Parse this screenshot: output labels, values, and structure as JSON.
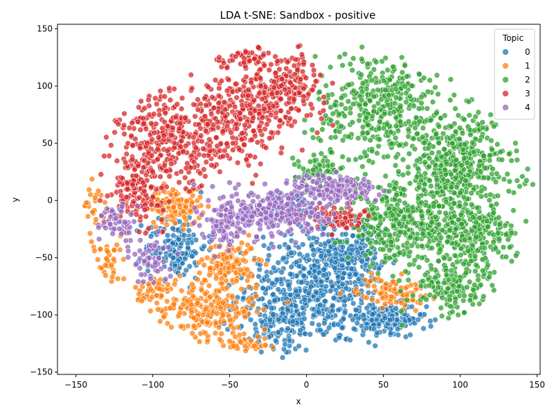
{
  "chart_data": {
    "type": "scatter",
    "title": "LDA t-SNE: Sandbox - positive",
    "xlabel": "x",
    "ylabel": "y",
    "xlim": [
      -162,
      152
    ],
    "ylim": [
      -152,
      154
    ],
    "xticks": [
      -150,
      -100,
      -50,
      0,
      50,
      100,
      150
    ],
    "yticks": [
      -150,
      -100,
      -50,
      0,
      50,
      100,
      150
    ],
    "grid": false,
    "legend": {
      "title": "Topic",
      "placement": "top-right",
      "entries": [
        "0",
        "1",
        "2",
        "3",
        "4"
      ]
    },
    "series": [
      {
        "name": "0",
        "color": "#1f77b4",
        "regions": [
          {
            "cx": 5,
            "cy": -75,
            "rx": 40,
            "ry": 45,
            "n": 520
          },
          {
            "cx": 30,
            "cy": -45,
            "rx": 18,
            "ry": 25,
            "n": 140
          },
          {
            "cx": 50,
            "cy": -105,
            "rx": 25,
            "ry": 14,
            "n": 160
          },
          {
            "cx": -85,
            "cy": -40,
            "rx": 18,
            "ry": 25,
            "n": 140
          },
          {
            "cx": -20,
            "cy": -105,
            "rx": 25,
            "ry": 25,
            "n": 120
          },
          {
            "cx": -10,
            "cy": -5,
            "rx": 15,
            "ry": 10,
            "n": 40
          }
        ]
      },
      {
        "name": "1",
        "color": "#ff7f0e",
        "regions": [
          {
            "cx": -135,
            "cy": -55,
            "rx": 18,
            "ry": 22,
            "n": 80
          },
          {
            "cx": -65,
            "cy": -95,
            "rx": 30,
            "ry": 25,
            "n": 240
          },
          {
            "cx": -50,
            "cy": -55,
            "rx": 15,
            "ry": 18,
            "n": 130
          },
          {
            "cx": -85,
            "cy": -5,
            "rx": 15,
            "ry": 15,
            "n": 120
          },
          {
            "cx": 55,
            "cy": -80,
            "rx": 20,
            "ry": 12,
            "n": 90
          },
          {
            "cx": -140,
            "cy": -5,
            "rx": 10,
            "ry": 15,
            "n": 30
          },
          {
            "cx": -40,
            "cy": -125,
            "rx": 15,
            "ry": 10,
            "n": 40
          },
          {
            "cx": -100,
            "cy": -80,
            "rx": 10,
            "ry": 15,
            "n": 40
          }
        ]
      },
      {
        "name": "2",
        "color": "#2ca02c",
        "regions": [
          {
            "cx": 50,
            "cy": 80,
            "rx": 40,
            "ry": 45,
            "n": 420
          },
          {
            "cx": 100,
            "cy": 30,
            "rx": 35,
            "ry": 40,
            "n": 420
          },
          {
            "cx": 60,
            "cy": -20,
            "rx": 30,
            "ry": 30,
            "n": 330
          },
          {
            "cx": 105,
            "cy": -30,
            "rx": 30,
            "ry": 25,
            "n": 280
          },
          {
            "cx": 95,
            "cy": -75,
            "rx": 25,
            "ry": 25,
            "n": 160
          },
          {
            "cx": 10,
            "cy": 25,
            "rx": 15,
            "ry": 12,
            "n": 60
          }
        ]
      },
      {
        "name": "3",
        "color": "#d62728",
        "regions": [
          {
            "cx": -90,
            "cy": 50,
            "rx": 30,
            "ry": 40,
            "n": 320
          },
          {
            "cx": -45,
            "cy": 70,
            "rx": 30,
            "ry": 35,
            "n": 280
          },
          {
            "cx": -15,
            "cy": 100,
            "rx": 25,
            "ry": 25,
            "n": 200
          },
          {
            "cx": -110,
            "cy": 10,
            "rx": 15,
            "ry": 25,
            "n": 140
          },
          {
            "cx": 20,
            "cy": -15,
            "rx": 15,
            "ry": 10,
            "n": 60
          },
          {
            "cx": -40,
            "cy": 125,
            "rx": 20,
            "ry": 8,
            "n": 50
          }
        ]
      },
      {
        "name": "4",
        "color": "#9467bd",
        "regions": [
          {
            "cx": -20,
            "cy": -10,
            "rx": 30,
            "ry": 20,
            "n": 300
          },
          {
            "cx": 20,
            "cy": 10,
            "rx": 25,
            "ry": 12,
            "n": 150
          },
          {
            "cx": -100,
            "cy": -50,
            "rx": 12,
            "ry": 20,
            "n": 60
          },
          {
            "cx": -125,
            "cy": -20,
            "rx": 10,
            "ry": 15,
            "n": 50
          },
          {
            "cx": -55,
            "cy": -20,
            "rx": 12,
            "ry": 15,
            "n": 70
          }
        ]
      }
    ]
  }
}
